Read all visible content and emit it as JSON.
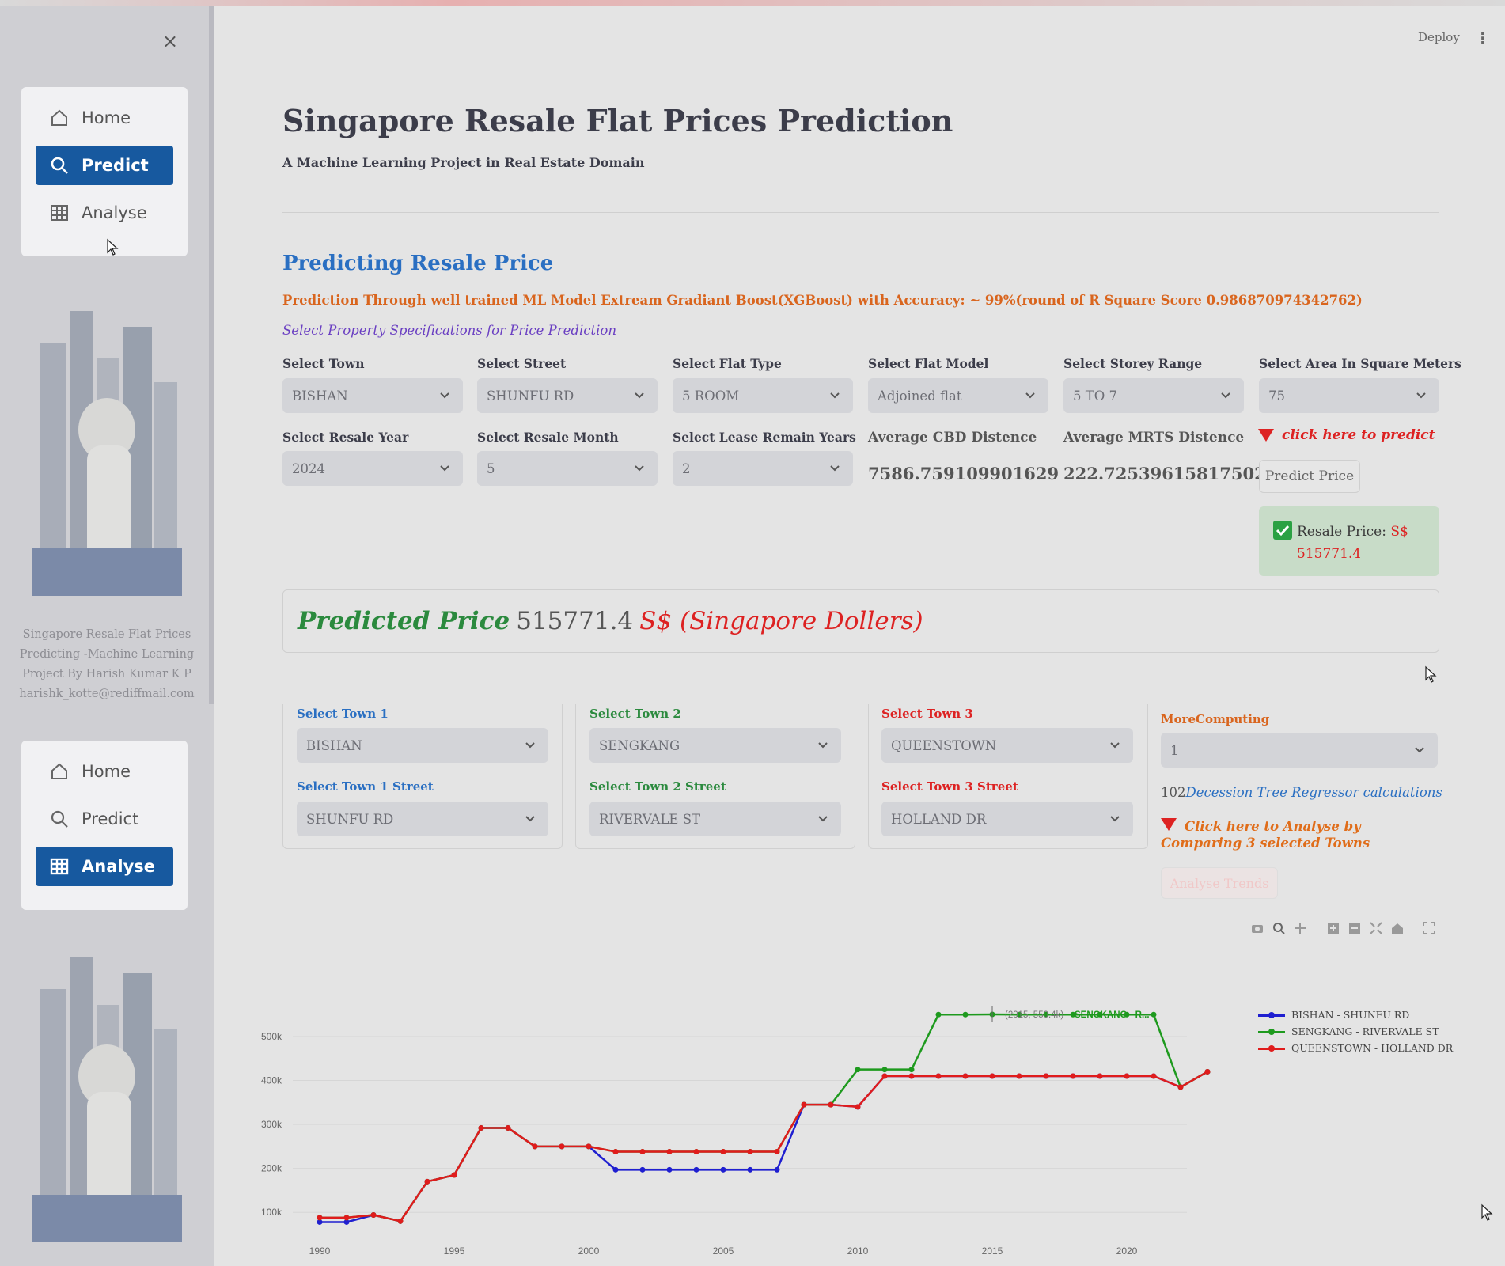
{
  "header": {
    "deploy_label": "Deploy",
    "menu_glyph": "⋮",
    "close_glyph": "×"
  },
  "sidebar": {
    "nav": [
      {
        "label": "Home",
        "icon": "home-icon"
      },
      {
        "label": "Predict",
        "icon": "search-icon"
      },
      {
        "label": "Analyse",
        "icon": "table-icon"
      }
    ],
    "top_active": "Predict",
    "bottom_active": "Analyse",
    "footer_lines": [
      "Singapore Resale Flat Prices",
      "Predicting -Machine Learning",
      "Project By Harish Kumar K P",
      "harishk_kotte@rediffmail.com"
    ]
  },
  "main": {
    "title": "Singapore Resale Flat Prices Prediction",
    "subtitle": "A Machine Learning Project in Real Estate Domain",
    "section_title": "Predicting Resale Price",
    "model_line": "Prediction Through well trained ML Model Extream Gradiant Boost(XGBoost) with Accuracy: ~ 99%(round of R Square Score 0.986870974342762)",
    "spec_line": "Select Property Specifications for Price Prediction",
    "fields_row1": [
      {
        "label": "Select Town",
        "value": "BISHAN"
      },
      {
        "label": "Select Street",
        "value": "SHUNFU RD"
      },
      {
        "label": "Select Flat Type",
        "value": "5 ROOM"
      },
      {
        "label": "Select Flat Model",
        "value": "Adjoined flat"
      },
      {
        "label": "Select Storey Range",
        "value": "5 TO 7"
      },
      {
        "label": "Select Area In Square Meters",
        "value": "75"
      }
    ],
    "fields_row2": [
      {
        "label": "Select Resale Year",
        "value": "2024"
      },
      {
        "label": "Select Resale Month",
        "value": "5"
      },
      {
        "label": "Select Lease Remain Years",
        "value": "2"
      }
    ],
    "cbd": {
      "label": "Average CBD Distence",
      "value": "7586.759109901629"
    },
    "mrts": {
      "label": "Average MRTS Distence",
      "value": "222.72539615817502"
    },
    "click_hint": "click here to predict",
    "predict_button": "Predict Price",
    "result": {
      "label": "Resale Price:",
      "currency": "S$",
      "value": "515771.4"
    },
    "banner": {
      "lead": "Predicted Price",
      "value": "515771.4",
      "tail": "S$ (Singapore Dollers)"
    }
  },
  "analyse": {
    "towns": [
      {
        "town_label": "Select Town 1",
        "town": "BISHAN",
        "street_label": "Select Town 1 Street",
        "street": "SHUNFU RD"
      },
      {
        "town_label": "Select Town 2",
        "town": "SENGKANG",
        "street_label": "Select Town 2 Street",
        "street": "RIVERVALE ST"
      },
      {
        "town_label": "Select Town 3",
        "town": "QUEENSTOWN",
        "street_label": "Select Town 3 Street",
        "street": "HOLLAND DR"
      }
    ],
    "more_label": "MoreComputing",
    "more_value": "1",
    "dt_count": "102",
    "dt_text": "Decession Tree Regressor calculations",
    "hint": "Click here to Analyse by Comparing 3 selected Towns",
    "button": "Analyse Trends"
  },
  "chart_data": {
    "type": "line",
    "xlim": [
      1989,
      2024
    ],
    "ylim": [
      50000,
      590000
    ],
    "x_ticks": [
      1990,
      1995,
      2000,
      2005,
      2010,
      2015,
      2020
    ],
    "x_tick_labels": [
      "1990",
      "1995",
      "2000",
      "2005",
      "2010",
      "2015",
      "2020"
    ],
    "y_ticks": [
      100000,
      200000,
      300000,
      400000,
      500000
    ],
    "y_tick_labels": [
      "100k",
      "200k",
      "300k",
      "400k",
      "500k"
    ],
    "legend_position": "right",
    "series": [
      {
        "name": "BISHAN - SHUNFU RD",
        "color": "#1f1fd0",
        "x": [
          1990,
          1991,
          1992,
          1993,
          1994,
          1995,
          1996,
          1997,
          1998,
          1999,
          2000,
          2001,
          2002,
          2003,
          2004,
          2005,
          2006,
          2007,
          2008,
          2009,
          2010,
          2011,
          2012,
          2013,
          2014,
          2015,
          2016,
          2017,
          2018,
          2019,
          2020,
          2021,
          2022,
          2023
        ],
        "y": [
          78000,
          78000,
          94000,
          80000,
          170000,
          185000,
          292000,
          292000,
          250000,
          250000,
          250000,
          197000,
          197000,
          197000,
          197000,
          197000,
          197000,
          197000,
          345000,
          345000,
          340000,
          410000,
          410000,
          410000,
          410000,
          410000,
          410000,
          410000,
          410000,
          410000,
          410000,
          410000,
          385000,
          420000
        ]
      },
      {
        "name": "SENGKANG - RIVERVALE ST",
        "color": "#1e9a1e",
        "x": [
          1990,
          1991,
          1992,
          1993,
          1994,
          1995,
          1996,
          1997,
          1998,
          1999,
          2000,
          2001,
          2002,
          2003,
          2004,
          2005,
          2006,
          2007,
          2008,
          2009,
          2010,
          2011,
          2012,
          2013,
          2014,
          2015,
          2016,
          2017,
          2018,
          2019,
          2020,
          2021,
          2022,
          2023
        ],
        "y": [
          88000,
          88000,
          94000,
          80000,
          170000,
          185000,
          292000,
          292000,
          250000,
          250000,
          250000,
          238000,
          238000,
          238000,
          238000,
          238000,
          238000,
          238000,
          345000,
          345000,
          425000,
          425000,
          425000,
          550000,
          550000,
          550400,
          550000,
          550000,
          550000,
          550000,
          550000,
          550000,
          385000,
          420000
        ]
      },
      {
        "name": "QUEENSTOWN - HOLLAND DR",
        "color": "#e01c1c",
        "x": [
          1990,
          1991,
          1992,
          1993,
          1994,
          1995,
          1996,
          1997,
          1998,
          1999,
          2000,
          2001,
          2002,
          2003,
          2004,
          2005,
          2006,
          2007,
          2008,
          2009,
          2010,
          2011,
          2012,
          2013,
          2014,
          2015,
          2016,
          2017,
          2018,
          2019,
          2020,
          2021,
          2022,
          2023
        ],
        "y": [
          88000,
          88000,
          94000,
          80000,
          170000,
          185000,
          292000,
          292000,
          250000,
          250000,
          250000,
          238000,
          238000,
          238000,
          238000,
          238000,
          238000,
          238000,
          345000,
          345000,
          340000,
          410000,
          410000,
          410000,
          410000,
          410000,
          410000,
          410000,
          410000,
          410000,
          410000,
          410000,
          385000,
          420000
        ]
      }
    ],
    "hover_label": "(2015, 550.4k)",
    "hover_series": "SENGKANG - R..."
  }
}
